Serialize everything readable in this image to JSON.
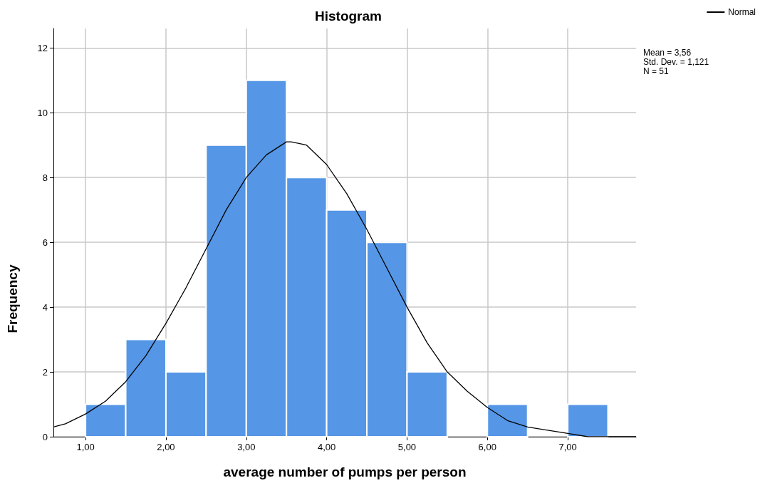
{
  "chart_data": {
    "type": "histogram",
    "title": "Histogram",
    "xlabel": "average number of pumps per person",
    "ylabel": "Frequency",
    "bins": [
      1.0,
      1.5,
      2.0,
      2.5,
      3.0,
      3.5,
      4.0,
      4.5,
      5.0,
      5.5,
      6.0,
      6.5,
      7.0,
      7.5
    ],
    "values": [
      1,
      3,
      2,
      9,
      11,
      8,
      7,
      6,
      2,
      0,
      1,
      0,
      1
    ],
    "color": "#5596e6",
    "series": [
      {
        "type": "line",
        "name": "Normal",
        "color": "#000000",
        "x": [
          0.6,
          0.75,
          1.0,
          1.25,
          1.5,
          1.75,
          2.0,
          2.25,
          2.5,
          2.75,
          3.0,
          3.25,
          3.5,
          3.56,
          3.75,
          4.0,
          4.25,
          4.5,
          4.75,
          5.0,
          5.25,
          5.5,
          5.75,
          6.0,
          6.25,
          6.5,
          6.75,
          7.0,
          7.25,
          7.5,
          7.85
        ],
        "values": [
          0.3,
          0.4,
          0.7,
          1.1,
          1.7,
          2.5,
          3.5,
          4.6,
          5.8,
          7.0,
          8.0,
          8.7,
          9.1,
          9.1,
          9.0,
          8.4,
          7.5,
          6.4,
          5.2,
          4.0,
          2.9,
          2.0,
          1.4,
          0.9,
          0.5,
          0.3,
          0.2,
          0.1,
          0.0,
          0.0,
          0.0
        ]
      }
    ],
    "xlim": [
      0.6,
      7.85
    ],
    "xticks": [
      {
        "value": 1,
        "label": "1,00"
      },
      {
        "value": 2,
        "label": "2,00"
      },
      {
        "value": 3,
        "label": "3,00"
      },
      {
        "value": 4,
        "label": "4,00"
      },
      {
        "value": 5,
        "label": "5,00"
      },
      {
        "value": 6,
        "label": "6,00"
      },
      {
        "value": 7,
        "label": "7,00"
      }
    ],
    "ylim": [
      0,
      12.6
    ],
    "yticks": [
      0,
      2,
      4,
      6,
      8,
      10,
      12
    ],
    "grid": true,
    "legend": "top right",
    "marker": "none",
    "line_style": "solid",
    "annotations": [
      "Mean = 3,56",
      "Std. Dev. = 1,121",
      "N = 51"
    ]
  }
}
